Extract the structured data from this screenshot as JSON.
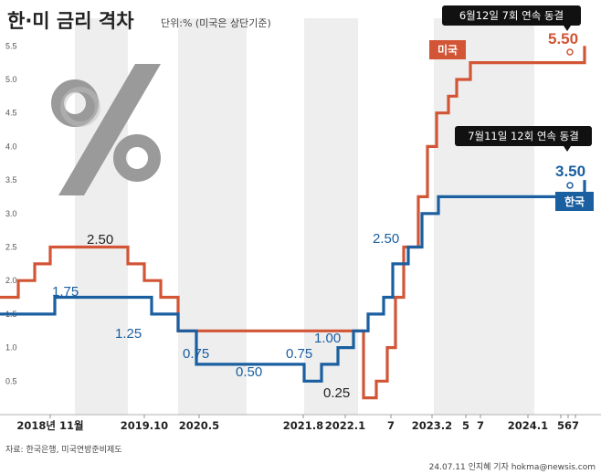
{
  "header": {
    "title": "한·미 금리 격차",
    "unit": "단위:% (미국은 상단기준)"
  },
  "footer": {
    "source": "자료: 한국은행, 미국연방준비제도",
    "credit": "24.07.11 인지혜 기자 hokma@newsis.com"
  },
  "colors": {
    "us": "#d25536",
    "kr": "#1a5fa0",
    "band": "#eeeeee",
    "callout": "#111111",
    "icon": "#9a9a9a"
  },
  "chart_data": {
    "type": "line",
    "step": true,
    "ylim": [
      0,
      5.75
    ],
    "yticks": [
      "0.5",
      "1.0",
      "1.5",
      "2.0",
      "2.5",
      "3.0",
      "3.5",
      "4.0",
      "4.5",
      "5.0",
      "5.5"
    ],
    "xticks": [
      "2018년 11월",
      "2019.10",
      "2020.5",
      "2021.8",
      "2022.1",
      "7",
      "2023.2",
      "5",
      "7",
      "2024.1",
      "5",
      "6",
      "7"
    ],
    "series": [
      {
        "name": "미국",
        "values": [
          1.75,
          2.0,
          2.25,
          2.5,
          2.25,
          2.0,
          1.75,
          1.25,
          0.25,
          0.5,
          1.0,
          1.75,
          2.5,
          3.25,
          4.0,
          4.5,
          4.75,
          5.0,
          5.25,
          5.5
        ]
      },
      {
        "name": "한국",
        "values": [
          1.5,
          1.75,
          1.5,
          1.25,
          0.75,
          0.5,
          0.75,
          1.0,
          1.25,
          1.5,
          1.75,
          2.25,
          2.5,
          3.0,
          3.25,
          3.5
        ]
      }
    ],
    "labels": {
      "us_250": "2.50",
      "us_025": "0.25",
      "kr_175": "1.75",
      "kr_125": "1.25",
      "kr_075a": "0.75",
      "kr_050": "0.50",
      "kr_075b": "0.75",
      "kr_100": "1.00",
      "kr_250": "2.50"
    },
    "final": {
      "us_value": "5.50",
      "kr_value": "3.50",
      "us_note": "6월12일 7회 연속 동결",
      "kr_note": "7월11일 12회 연속 동결"
    },
    "legend": [
      "미국",
      "한국"
    ]
  }
}
